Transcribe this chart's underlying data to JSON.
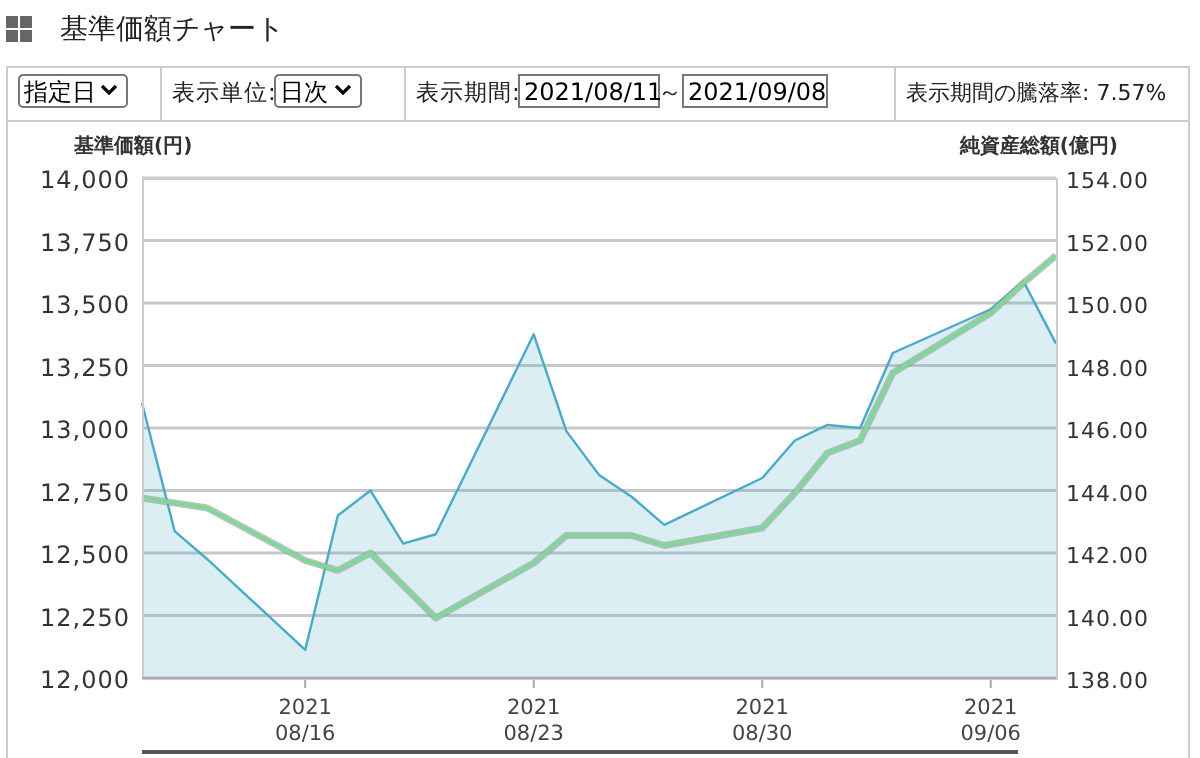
{
  "chart_data": {
    "type": "line",
    "title": "基準価額チャート",
    "annotations": [
      "指定日",
      "表示単位:",
      "日次",
      "表示期間:",
      "2021/08/11",
      "～",
      "2021/09/08",
      "表示期間の騰落率: 7.57%"
    ],
    "ylabel": "基準価額(円)",
    "y2label": "純資産総額(億円)",
    "x": [
      "2021-08-11",
      "2021-08-12",
      "2021-08-13",
      "2021-08-16",
      "2021-08-17",
      "2021-08-18",
      "2021-08-19",
      "2021-08-20",
      "2021-08-23",
      "2021-08-24",
      "2021-08-25",
      "2021-08-26",
      "2021-08-27",
      "2021-08-30",
      "2021-08-31",
      "2021-09-01",
      "2021-09-02",
      "2021-09-03",
      "2021-09-06",
      "2021-09-07",
      "2021-09-08"
    ],
    "series": [
      {
        "type": "area",
        "axis": "y2",
        "color": "#4aaac8",
        "values": [
          146.8,
          142.7,
          141.8,
          138.9,
          143.2,
          144.0,
          142.3,
          142.6,
          149.0,
          145.9,
          144.5,
          143.8,
          142.9,
          144.4,
          145.6,
          146.1,
          146.0,
          148.4,
          149.8,
          150.7,
          148.7
        ]
      },
      {
        "type": "line",
        "color": "#7fd89a",
        "values": [
          12720,
          12700,
          12680,
          12470,
          12430,
          12500,
          12370,
          12240,
          12460,
          12570,
          12570,
          12570,
          12530,
          12600,
          12740,
          12900,
          12950,
          13220,
          13460,
          13580,
          13690
        ]
      }
    ],
    "xlim": [
      "2021-08-11",
      "2021-09-08"
    ],
    "xticks": [
      {
        "value": "2021-08-16",
        "label": "2021\n08/16"
      },
      {
        "value": "2021-08-23",
        "label": "2021\n08/23"
      },
      {
        "value": "2021-08-30",
        "label": "2021\n08/30"
      },
      {
        "value": "2021-09-06",
        "label": "2021\n09/06"
      }
    ],
    "ylim": [
      12000,
      14000
    ],
    "yticks": [
      {
        "value": 12000,
        "label": "12,000"
      },
      {
        "value": 12250,
        "label": "12,250"
      },
      {
        "value": 12500,
        "label": "12,500"
      },
      {
        "value": 12750,
        "label": "12,750"
      },
      {
        "value": 13000,
        "label": "13,000"
      },
      {
        "value": 13250,
        "label": "13,250"
      },
      {
        "value": 13500,
        "label": "13,500"
      },
      {
        "value": 13750,
        "label": "13,750"
      },
      {
        "value": 14000,
        "label": "14,000"
      }
    ],
    "y2lim": [
      138,
      154
    ],
    "y2ticks": [
      {
        "value": 138,
        "label": "138.00"
      },
      {
        "value": 140,
        "label": "140.00"
      },
      {
        "value": 142,
        "label": "142.00"
      },
      {
        "value": 144,
        "label": "144.00"
      },
      {
        "value": 146,
        "label": "146.00"
      },
      {
        "value": 148,
        "label": "148.00"
      },
      {
        "value": 150,
        "label": "150.00"
      },
      {
        "value": 152,
        "label": "152.00"
      },
      {
        "value": 154,
        "label": "154.00"
      }
    ],
    "grid": "y"
  }
}
